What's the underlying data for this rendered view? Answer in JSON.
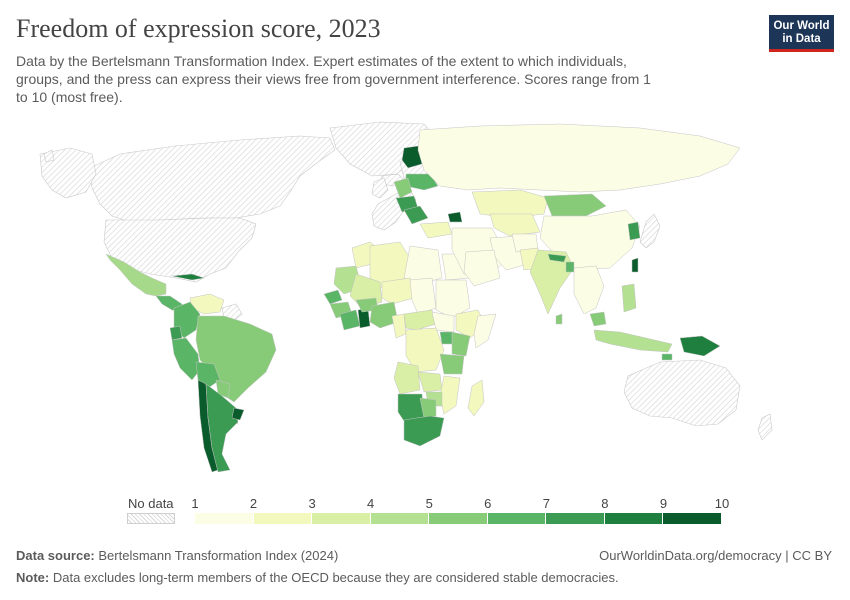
{
  "header": {
    "title": "Freedom of expression score, 2023",
    "subtitle": "Data by the Bertelsmann Transformation Index. Expert estimates of the extent to which individuals, groups, and the press can express their views free from government interference. Scores range from 1 to 10 (most free).",
    "logo_line1": "Our World",
    "logo_line2": "in Data"
  },
  "legend": {
    "nodata_label": "No data",
    "ticks": [
      "1",
      "2",
      "3",
      "4",
      "5",
      "6",
      "7",
      "8",
      "9",
      "10"
    ],
    "bins": [
      {
        "from": 1,
        "to": 2,
        "color": "#fcfde5"
      },
      {
        "from": 2,
        "to": 3,
        "color": "#f2f8be"
      },
      {
        "from": 3,
        "to": 4,
        "color": "#d9efa6"
      },
      {
        "from": 4,
        "to": 5,
        "color": "#b4e091"
      },
      {
        "from": 5,
        "to": 6,
        "color": "#87cb79"
      },
      {
        "from": 6,
        "to": 7,
        "color": "#5bb566"
      },
      {
        "from": 7,
        "to": 8,
        "color": "#3b9b52"
      },
      {
        "from": 8,
        "to": 9,
        "color": "#1f7f3f"
      },
      {
        "from": 9,
        "to": 10,
        "color": "#0b5c2c"
      }
    ]
  },
  "footer": {
    "source_label": "Data source:",
    "source_value": "Bertelsmann Transformation Index (2024)",
    "link": "OurWorldinData.org/democracy | CC BY",
    "note_label": "Note:",
    "note_value": "Data excludes long-term members of the OECD because they are considered stable democracies."
  },
  "colors": {
    "nodata": "#ffffff",
    "hatch": "#d6d6d6",
    "border": "#c4c4c4"
  }
}
